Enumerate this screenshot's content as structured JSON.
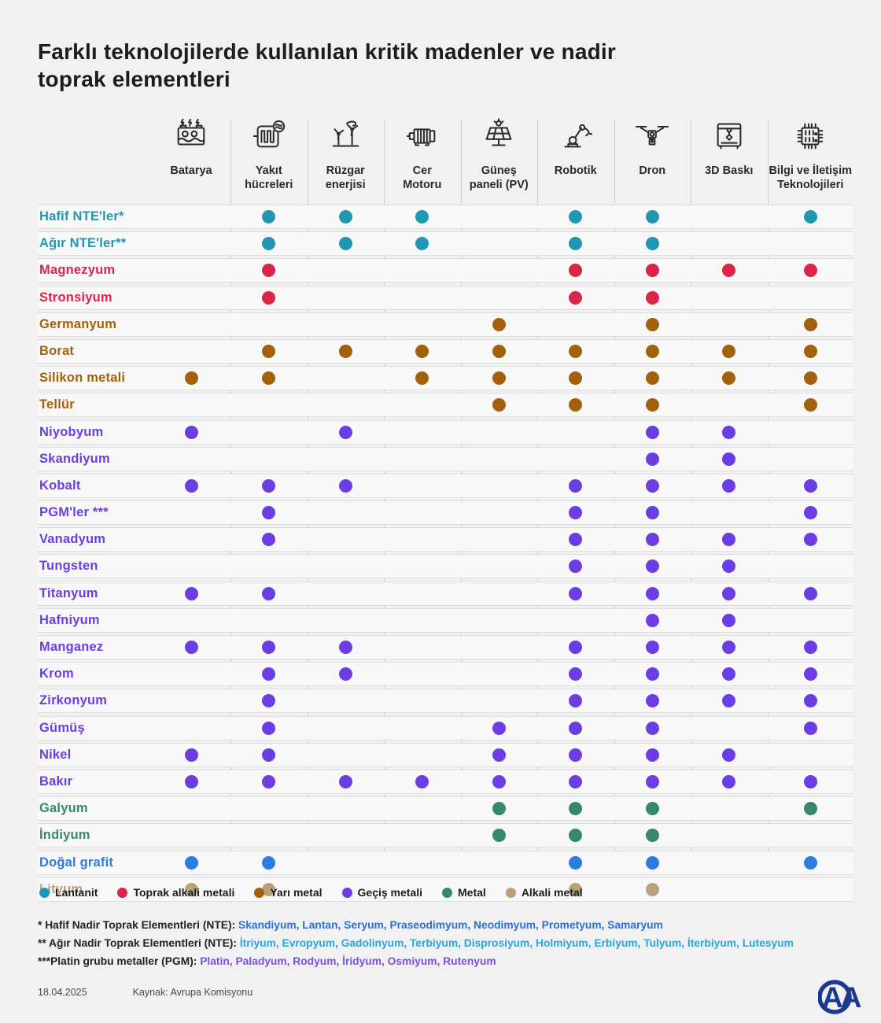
{
  "title": "Farklı teknolojilerde kullanılan kritik madenler ve nadir toprak elementleri",
  "palette": {
    "teal": "#2097B3",
    "red": "#DA2448",
    "brown": "#A3610E",
    "purple": "#6B3DE3",
    "green": "#35896B",
    "tan": "#B9A17E",
    "blue": "#2E7CE0",
    "navy": "#1B3A8F",
    "grid_line": "#CFCFCF",
    "row_band": "#F8F8F8",
    "background": "#F1F1F2"
  },
  "columns": [
    {
      "label": "Batarya",
      "icon": "battery-icon"
    },
    {
      "label": "Yakıt\nhücreleri",
      "icon": "fuel-cell-icon"
    },
    {
      "label": "Rüzgar\nenerjisi",
      "icon": "wind-energy-icon"
    },
    {
      "label": "Cer\nMotoru",
      "icon": "traction-motor-icon"
    },
    {
      "label": "Güneş\npaneli (PV)",
      "icon": "solar-panel-icon"
    },
    {
      "label": "Robotik",
      "icon": "robot-arm-icon"
    },
    {
      "label": "Dron",
      "icon": "drone-icon"
    },
    {
      "label": "3D Baskı",
      "icon": "printer-3d-icon"
    },
    {
      "label": "Bilgi ve İletişim\nTeknolojileri",
      "icon": "ict-chip-icon"
    }
  ],
  "legend": [
    {
      "label": "Lantanit",
      "color": "teal"
    },
    {
      "label": "Toprak alkali metali",
      "color": "red"
    },
    {
      "label": "Yarı metal",
      "color": "brown"
    },
    {
      "label": "Geçiş metali",
      "color": "purple"
    },
    {
      "label": "Metal",
      "color": "green"
    },
    {
      "label": "Alkali metal",
      "color": "tan"
    }
  ],
  "footnotes": [
    {
      "prefix": "* Hafif Nadir Toprak Elementleri (NTE):",
      "items": "Skandiyum, Lantan, Seryum, Praseodimyum, Neodimyum, Prometyum, Samaryum",
      "color": "#2A6FD9"
    },
    {
      "prefix": "** Ağır Nadir Toprak Elementleri (NTE):",
      "items": "İtriyum, Evropyum, Gadolinyum, Terbiyum, Disprosiyum, Holmiyum, Erbiyum, Tulyum, İterbiyum, Lutesyum",
      "color": "#2BA6D9"
    },
    {
      "prefix": "***Platin grubu metaller (PGM):",
      "items": "Platin, Paladyum, Rodyum, İridyum, Osmiyum, Rutenyum",
      "color": "#7A52DD"
    }
  ],
  "footer": {
    "date": "18.04.2025",
    "source": "Kaynak: Avrupa Komisyonu",
    "logo_text": "AA"
  },
  "chart_data": {
    "type": "heatmap",
    "title": "Farklı teknolojilerde kullanılan kritik madenler ve nadir toprak elementleri",
    "columns": [
      "Batarya",
      "Yakıt hücreleri",
      "Rüzgar enerjisi",
      "Cer Motoru",
      "Güneş paneli (PV)",
      "Robotik",
      "Dron",
      "3D Baskı",
      "Bilgi ve İletişim Teknolojileri"
    ],
    "value_encoding": "1 = mineral is used in that technology (dot shown), 0 = not used",
    "rows": [
      {
        "label": "Hafif NTE'ler*",
        "color": "teal",
        "values": [
          0,
          1,
          1,
          1,
          0,
          1,
          1,
          0,
          1
        ]
      },
      {
        "label": "Ağır NTE'ler**",
        "color": "teal",
        "values": [
          0,
          1,
          1,
          1,
          0,
          1,
          1,
          0,
          0
        ]
      },
      {
        "label": "Magnezyum",
        "color": "red",
        "values": [
          0,
          1,
          0,
          0,
          0,
          1,
          1,
          1,
          1
        ]
      },
      {
        "label": "Stronsiyum",
        "color": "red",
        "values": [
          0,
          1,
          0,
          0,
          0,
          1,
          1,
          0,
          0
        ]
      },
      {
        "label": "Germanyum",
        "color": "brown",
        "values": [
          0,
          0,
          0,
          0,
          1,
          0,
          1,
          0,
          1
        ]
      },
      {
        "label": "Borat",
        "color": "brown",
        "values": [
          0,
          1,
          1,
          1,
          1,
          1,
          1,
          1,
          1
        ]
      },
      {
        "label": "Silikon metali",
        "color": "brown",
        "bold": true,
        "values": [
          1,
          1,
          0,
          1,
          1,
          1,
          1,
          1,
          1
        ]
      },
      {
        "label": "Tellür",
        "color": "brown",
        "values": [
          0,
          0,
          0,
          0,
          1,
          1,
          1,
          0,
          1
        ]
      },
      {
        "label": "Niyobyum",
        "color": "purple",
        "values": [
          1,
          0,
          1,
          0,
          0,
          0,
          1,
          1,
          0
        ]
      },
      {
        "label": "Skandiyum",
        "color": "purple",
        "values": [
          0,
          0,
          0,
          0,
          0,
          0,
          1,
          1,
          0
        ]
      },
      {
        "label": "Kobalt",
        "color": "purple",
        "values": [
          1,
          1,
          1,
          0,
          0,
          1,
          1,
          1,
          1
        ]
      },
      {
        "label": "PGM'ler ***",
        "color": "purple",
        "values": [
          0,
          1,
          0,
          0,
          0,
          1,
          1,
          0,
          1
        ]
      },
      {
        "label": "Vanadyum",
        "color": "purple",
        "values": [
          0,
          1,
          0,
          0,
          0,
          1,
          1,
          1,
          1
        ]
      },
      {
        "label": "Tungsten",
        "color": "purple",
        "values": [
          0,
          0,
          0,
          0,
          0,
          1,
          1,
          1,
          0
        ]
      },
      {
        "label": "Titanyum",
        "color": "purple",
        "values": [
          1,
          1,
          0,
          0,
          0,
          1,
          1,
          1,
          1
        ]
      },
      {
        "label": "Hafniyum",
        "color": "purple",
        "values": [
          0,
          0,
          0,
          0,
          0,
          0,
          1,
          1,
          0
        ]
      },
      {
        "label": "Manganez",
        "color": "purple",
        "values": [
          1,
          1,
          1,
          0,
          0,
          1,
          1,
          1,
          1
        ]
      },
      {
        "label": "Krom",
        "color": "purple",
        "values": [
          0,
          1,
          1,
          0,
          0,
          1,
          1,
          1,
          1
        ]
      },
      {
        "label": "Zirkonyum",
        "color": "purple",
        "values": [
          0,
          1,
          0,
          0,
          0,
          1,
          1,
          1,
          1
        ]
      },
      {
        "label": "Gümüş",
        "color": "purple",
        "values": [
          0,
          1,
          0,
          0,
          1,
          1,
          1,
          0,
          1
        ]
      },
      {
        "label": "Nikel",
        "color": "purple",
        "values": [
          1,
          1,
          0,
          0,
          1,
          1,
          1,
          1,
          0
        ]
      },
      {
        "label": "Bakır",
        "color": "purple",
        "values": [
          1,
          1,
          1,
          1,
          1,
          1,
          1,
          1,
          1
        ]
      },
      {
        "label": "Galyum",
        "color": "green",
        "values": [
          0,
          0,
          0,
          0,
          1,
          1,
          1,
          0,
          1
        ]
      },
      {
        "label": "İndiyum",
        "color": "green",
        "values": [
          0,
          0,
          0,
          0,
          1,
          1,
          1,
          0,
          0
        ]
      },
      {
        "label": "Doğal grafit",
        "color": "blue",
        "values": [
          1,
          1,
          0,
          0,
          0,
          1,
          1,
          0,
          1
        ]
      },
      {
        "label": "Lityum",
        "color": "tan",
        "values": [
          1,
          1,
          0,
          0,
          0,
          1,
          1,
          0,
          0
        ]
      }
    ],
    "legend_entries": [
      "Lantanit",
      "Toprak alkali metali",
      "Yarı metal",
      "Geçiş metali",
      "Metal",
      "Alkali metal"
    ],
    "legend_position": "bottom-left"
  }
}
